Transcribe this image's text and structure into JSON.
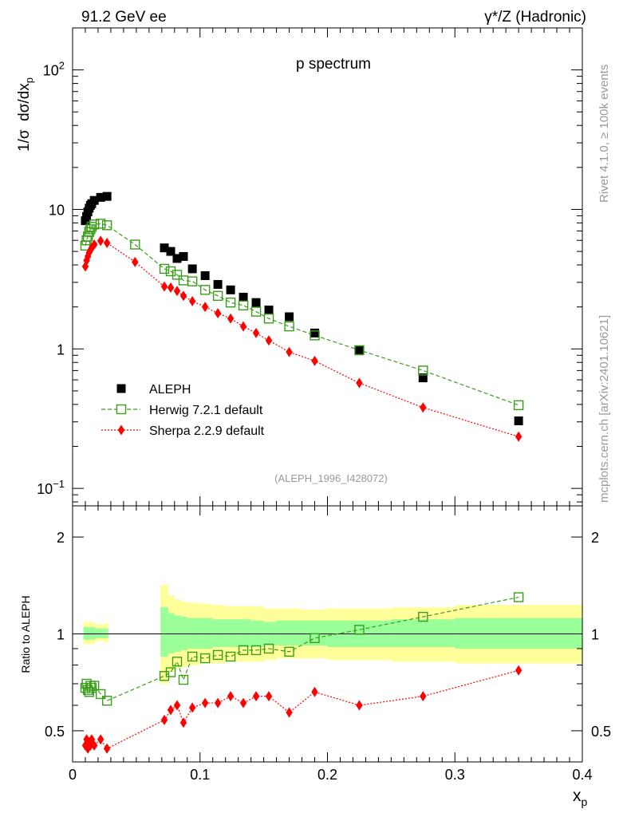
{
  "header": {
    "left": "91.2 GeV ee",
    "right": "γ*/Z (Hadronic)"
  },
  "side_text": {
    "top": "Rivet 4.1.0, ≥ 100k events",
    "bottom": "mcplots.cern.ch [arXiv:2401.10621]"
  },
  "colors": {
    "aleph": "#000000",
    "herwig": "#3a9d1a",
    "sherpa": "#ff0000",
    "band_outer": "#ffff99",
    "band_inner": "#99ff99"
  },
  "chart_data": [
    {
      "type": "scatter",
      "title": "p spectrum",
      "xlabel": "x_p",
      "ylabel": "1/σ dσ/dx_p",
      "yscale": "log",
      "ylim": [
        0.075,
        200
      ],
      "xlim": [
        0,
        0.4
      ],
      "y_ticks": [
        {
          "value": 100,
          "label": "10^2"
        },
        {
          "value": 10,
          "label": "10"
        },
        {
          "value": 1,
          "label": "1"
        },
        {
          "value": 0.1,
          "label": "10^-1"
        }
      ],
      "legend_position": "lower-left",
      "watermark": "(ALEPH_1996_I428072)",
      "x": [
        0.01,
        0.011,
        0.012,
        0.013,
        0.014,
        0.015,
        0.017,
        0.022,
        0.027,
        0.049,
        0.072,
        0.077,
        0.082,
        0.087,
        0.094,
        0.104,
        0.114,
        0.124,
        0.134,
        0.144,
        0.154,
        0.17,
        0.19,
        0.225,
        0.275,
        0.35
      ],
      "series": [
        {
          "name": "ALEPH",
          "marker": "filled-square",
          "values": [
            8.3,
            8.9,
            9.6,
            10.2,
            10.7,
            11.0,
            11.6,
            12.2,
            12.4,
            null,
            5.3,
            5.0,
            4.45,
            4.6,
            3.75,
            3.35,
            2.9,
            2.65,
            2.35,
            2.15,
            1.9,
            1.7,
            1.3,
            0.97,
            0.62,
            0.305
          ]
        },
        {
          "name": "Herwig 7.2.1 default",
          "marker": "open-square",
          "line": "dashed",
          "values": [
            5.5,
            6.0,
            6.4,
            6.9,
            7.2,
            7.5,
            7.8,
            7.9,
            7.7,
            5.6,
            3.75,
            3.6,
            3.4,
            3.1,
            3.05,
            2.65,
            2.4,
            2.15,
            2.05,
            1.85,
            1.65,
            1.45,
            1.25,
            0.98,
            0.7,
            0.395
          ]
        },
        {
          "name": "Sherpa 2.2.9 default",
          "marker": "filled-diamond",
          "line": "dotted",
          "values": [
            3.9,
            4.3,
            4.6,
            4.9,
            5.1,
            5.3,
            5.6,
            5.95,
            5.75,
            4.2,
            2.8,
            2.75,
            2.6,
            2.4,
            2.2,
            2.0,
            1.8,
            1.65,
            1.45,
            1.3,
            1.15,
            0.95,
            0.82,
            0.57,
            0.38,
            0.235
          ]
        }
      ]
    },
    {
      "type": "scatter",
      "ylabel": "Ratio to ALEPH",
      "xlabel": "x_p",
      "yscale": "log",
      "ylim": [
        0.4,
        2.5
      ],
      "xlim": [
        0,
        0.4
      ],
      "x_ticks": [
        {
          "value": 0,
          "label": "0"
        },
        {
          "value": 0.1,
          "label": "0.1"
        },
        {
          "value": 0.2,
          "label": "0.2"
        },
        {
          "value": 0.3,
          "label": "0.3"
        },
        {
          "value": 0.4,
          "label": "0.4"
        }
      ],
      "y_ticks": [
        {
          "value": 2,
          "label": "2"
        },
        {
          "value": 1,
          "label": "1"
        },
        {
          "value": 0.5,
          "label": "0.5"
        }
      ],
      "reference_line": 1,
      "band": {
        "x_edges": [
          0.069,
          0.075,
          0.08,
          0.085,
          0.09,
          0.1,
          0.11,
          0.12,
          0.13,
          0.14,
          0.15,
          0.16,
          0.18,
          0.2,
          0.25,
          0.3,
          0.4
        ],
        "outer_upper": [
          1.42,
          1.32,
          1.28,
          1.26,
          1.25,
          1.24,
          1.23,
          1.22,
          1.22,
          1.22,
          1.2,
          1.2,
          1.19,
          1.2,
          1.21,
          1.23
        ],
        "outer_lower": [
          0.7,
          0.76,
          0.78,
          0.79,
          0.8,
          0.81,
          0.81,
          0.82,
          0.82,
          0.82,
          0.83,
          0.84,
          0.84,
          0.83,
          0.82,
          0.81
        ],
        "inner_upper": [
          1.21,
          1.16,
          1.14,
          1.13,
          1.12,
          1.12,
          1.11,
          1.11,
          1.11,
          1.1,
          1.09,
          1.1,
          1.1,
          1.1,
          1.11,
          1.12
        ],
        "inner_lower": [
          0.85,
          0.87,
          0.88,
          0.89,
          0.9,
          0.9,
          0.91,
          0.91,
          0.91,
          0.91,
          0.92,
          0.92,
          0.92,
          0.91,
          0.91,
          0.9
        ],
        "low_x_edges": [
          0.0085,
          0.0175,
          0.025,
          0.028
        ],
        "low_outer_upper": [
          1.09,
          1.07,
          1.08
        ],
        "low_outer_lower": [
          0.93,
          0.95,
          0.94
        ],
        "low_inner_upper": [
          1.05,
          1.04,
          1.04
        ],
        "low_inner_lower": [
          0.96,
          0.97,
          0.97
        ]
      },
      "x": [
        0.01,
        0.011,
        0.012,
        0.013,
        0.014,
        0.015,
        0.017,
        0.022,
        0.027,
        0.072,
        0.077,
        0.082,
        0.087,
        0.094,
        0.104,
        0.114,
        0.124,
        0.134,
        0.144,
        0.154,
        0.17,
        0.19,
        0.225,
        0.275,
        0.35
      ],
      "series": [
        {
          "name": "Herwig 7.2.1 default",
          "marker": "open-square",
          "line": "dashed",
          "values": [
            0.68,
            0.7,
            0.67,
            0.66,
            0.69,
            0.68,
            0.69,
            0.65,
            0.62,
            0.74,
            0.76,
            0.82,
            0.72,
            0.85,
            0.84,
            0.86,
            0.85,
            0.89,
            0.89,
            0.9,
            0.88,
            0.97,
            1.03,
            1.13,
            1.3
          ]
        },
        {
          "name": "Sherpa 2.2.9 default",
          "marker": "filled-diamond",
          "line": "dotted",
          "values": [
            0.45,
            0.47,
            0.44,
            0.46,
            0.45,
            0.47,
            0.45,
            0.47,
            0.44,
            0.54,
            0.58,
            0.6,
            0.53,
            0.59,
            0.61,
            0.61,
            0.64,
            0.61,
            0.64,
            0.64,
            0.57,
            0.66,
            0.6,
            0.64,
            0.77
          ]
        }
      ]
    }
  ]
}
